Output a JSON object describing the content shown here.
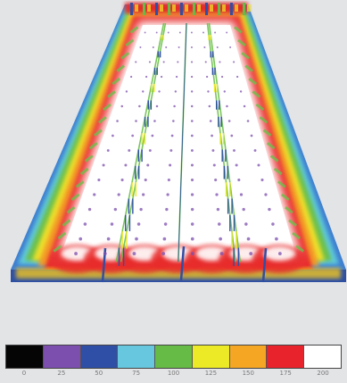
{
  "legend": [
    {
      "label": "0",
      "color": "#050505"
    },
    {
      "label": "25",
      "color": "#7c4fae"
    },
    {
      "label": "50",
      "color": "#2f4fa6"
    },
    {
      "label": "75",
      "color": "#66c7df"
    },
    {
      "label": "100",
      "color": "#66bb46"
    },
    {
      "label": "125",
      "color": "#ecea26"
    },
    {
      "label": "150",
      "color": "#f5a623"
    },
    {
      "label": "175",
      "color": "#e8232b"
    },
    {
      "label": "200",
      "color": "#ffffff"
    }
  ]
}
